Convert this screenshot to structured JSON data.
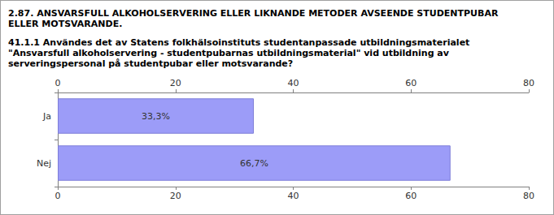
{
  "chart_data": {
    "type": "bar",
    "orientation": "horizontal",
    "title": "2.87. ANSVARSFULL ALKOHOLSERVERING ELLER LIKNANDE METODER AVSEENDE STUDENTPUBAR ELLER MOTSVARANDE.",
    "subtitle": "41.1.1 Användes det av Statens folkhälsoinstituts studentanpassade utbildningsmaterialet \"Ansvarsfull alkoholservering - studentpubarnas utbildningsmaterial\" vid utbildning av serveringspersonal på studentpubar eller motsvarande?",
    "categories": [
      "Ja",
      "Nej"
    ],
    "values": [
      33.3,
      66.7
    ],
    "value_labels": [
      "33,3%",
      "66,7%"
    ],
    "data_labels": true,
    "color": "#9c9cf8",
    "xlim": [
      0,
      80
    ],
    "xticks": [
      0,
      20,
      40,
      60,
      80
    ],
    "grid": false
  }
}
